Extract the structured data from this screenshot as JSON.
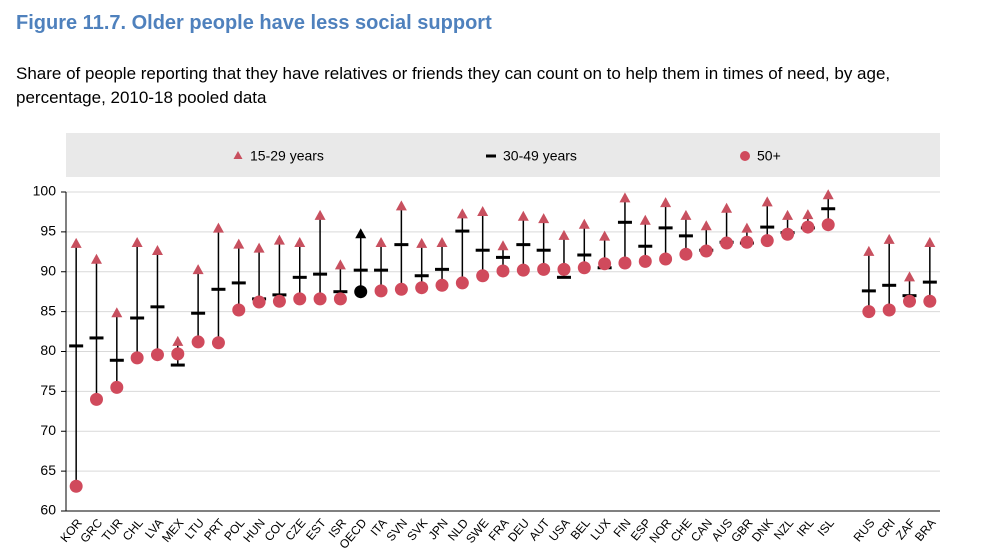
{
  "chart_data": {
    "type": "dot-range",
    "title": "Figure 11.7. Older people have less social support",
    "subtitle": "Share of people reporting that they have relatives or friends they can count on to help them in times of need, by age, percentage, 2010-18 pooled data",
    "categories": [
      "KOR",
      "GRC",
      "TUR",
      "CHL",
      "LVA",
      "MEX",
      "LTU",
      "PRT",
      "POL",
      "HUN",
      "COL",
      "CZE",
      "EST",
      "ISR",
      "OECD",
      "ITA",
      "SVN",
      "SVK",
      "JPN",
      "NLD",
      "SWE",
      "FRA",
      "DEU",
      "AUT",
      "USA",
      "BEL",
      "LUX",
      "FIN",
      "ESP",
      "NOR",
      "CHE",
      "CAN",
      "AUS",
      "GBR",
      "DNK",
      "NZL",
      "IRL",
      "ISL",
      null,
      "RUS",
      "CRI",
      "ZAF",
      "BRA"
    ],
    "series": [
      {
        "name": "15-29 years",
        "marker": "triangle",
        "color": "#c8505f",
        "values": [
          93.5,
          91.5,
          84.8,
          93.6,
          92.6,
          81.2,
          90.2,
          95.4,
          93.4,
          92.9,
          93.9,
          93.6,
          97.0,
          90.8,
          94.7,
          93.6,
          98.2,
          93.5,
          93.6,
          97.2,
          97.5,
          93.2,
          96.9,
          96.6,
          94.5,
          95.9,
          94.4,
          99.2,
          96.4,
          98.6,
          97.0,
          95.7,
          97.9,
          95.4,
          98.7,
          97.0,
          97.1,
          99.6,
          null,
          92.5,
          94.0,
          89.3,
          93.6
        ]
      },
      {
        "name": "30-49 years",
        "marker": "dash",
        "color": "#000000",
        "values": [
          80.7,
          81.7,
          78.9,
          84.2,
          85.6,
          78.3,
          84.8,
          87.8,
          88.6,
          86.6,
          87.1,
          89.3,
          89.7,
          87.5,
          90.2,
          90.2,
          93.4,
          89.5,
          90.3,
          95.1,
          92.7,
          91.8,
          93.4,
          92.7,
          89.3,
          92.1,
          90.5,
          96.2,
          93.2,
          95.5,
          94.5,
          92.7,
          93.7,
          93.6,
          95.6,
          94.9,
          95.5,
          97.9,
          null,
          87.6,
          88.3,
          87.0,
          88.7
        ]
      },
      {
        "name": "50+",
        "marker": "circle",
        "color": "#d04a5c",
        "values": [
          63.1,
          74.0,
          75.5,
          79.2,
          79.6,
          79.7,
          81.2,
          81.1,
          85.2,
          86.2,
          86.3,
          86.6,
          86.6,
          86.6,
          87.5,
          87.6,
          87.8,
          88.0,
          88.3,
          88.6,
          89.5,
          90.1,
          90.2,
          90.3,
          90.3,
          90.5,
          91.0,
          91.1,
          91.3,
          91.6,
          92.2,
          92.6,
          93.6,
          93.7,
          93.9,
          94.7,
          95.6,
          95.9,
          null,
          85.0,
          85.2,
          86.3,
          86.3
        ]
      }
    ],
    "highlight": {
      "category": "OECD",
      "color": "#000000"
    },
    "ylim": [
      60,
      100
    ],
    "yticks": [
      60,
      65,
      70,
      75,
      80,
      85,
      90,
      95,
      100
    ],
    "grid": true
  }
}
